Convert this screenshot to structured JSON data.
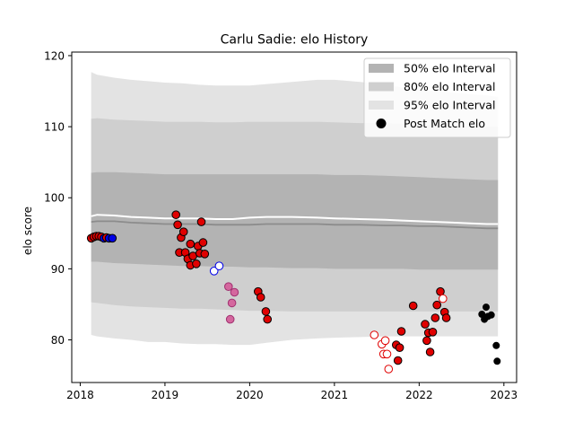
{
  "chart_data": {
    "type": "scatter",
    "title": "Carlu Sadie: elo History",
    "xlabel": "",
    "ylabel": "elo score",
    "xlim": [
      2017.9,
      2023.15
    ],
    "ylim": [
      74,
      120.5
    ],
    "x_ticks": [
      2018,
      2019,
      2020,
      2021,
      2022,
      2023
    ],
    "y_ticks": [
      80,
      90,
      100,
      110,
      120
    ],
    "grid": false,
    "legend_position": "top-right",
    "legend": [
      "50% elo Interval",
      "80% elo Interval",
      "95% elo Interval",
      "Post Match elo"
    ],
    "colors": {
      "band50": "#b3b3b3",
      "band80": "#cfcfcf",
      "band95": "#e3e3e3",
      "median_line": "#8c8c8c",
      "mean_line": "#ffffff",
      "red": "#e00000",
      "blue": "#0000e6",
      "pink": "#d4679e",
      "black": "#000000"
    },
    "interval_series": {
      "x": [
        2018.13,
        2018.2,
        2018.4,
        2018.6,
        2018.8,
        2019.0,
        2019.2,
        2019.4,
        2019.6,
        2019.8,
        2020.0,
        2020.2,
        2020.5,
        2020.8,
        2021.0,
        2021.3,
        2021.6,
        2021.8,
        2022.0,
        2022.2,
        2022.4,
        2022.6,
        2022.8,
        2022.93
      ],
      "median": [
        96.6,
        96.7,
        96.7,
        96.5,
        96.4,
        96.3,
        96.3,
        96.3,
        96.2,
        96.2,
        96.2,
        96.3,
        96.3,
        96.3,
        96.2,
        96.2,
        96.1,
        96.1,
        96.0,
        96.0,
        95.9,
        95.8,
        95.7,
        95.7
      ],
      "mean": [
        97.4,
        97.6,
        97.5,
        97.3,
        97.2,
        97.1,
        97.1,
        97.1,
        97.0,
        97.0,
        97.2,
        97.3,
        97.3,
        97.2,
        97.1,
        97.0,
        96.9,
        96.8,
        96.7,
        96.6,
        96.5,
        96.4,
        96.3,
        96.3
      ],
      "p50_low": [
        91.0,
        91.0,
        90.8,
        90.7,
        90.6,
        90.5,
        90.4,
        90.4,
        90.3,
        90.3,
        90.2,
        90.2,
        90.1,
        90.1,
        90.0,
        90.0,
        90.0,
        90.0,
        89.9,
        89.9,
        89.9,
        89.9,
        89.9,
        89.9
      ],
      "p50_high": [
        103.5,
        103.6,
        103.6,
        103.5,
        103.4,
        103.3,
        103.3,
        103.3,
        103.3,
        103.3,
        103.3,
        103.3,
        103.3,
        103.3,
        103.2,
        103.2,
        103.1,
        103.0,
        102.9,
        102.8,
        102.7,
        102.6,
        102.5,
        102.5
      ],
      "p80_low": [
        85.3,
        85.2,
        84.9,
        84.7,
        84.6,
        84.5,
        84.4,
        84.4,
        84.3,
        84.2,
        84.1,
        84.1,
        84.0,
        84.0,
        84.0,
        84.0,
        84.0,
        84.0,
        84.0,
        84.0,
        84.0,
        84.0,
        84.0,
        84.0
      ],
      "p80_high": [
        111.1,
        111.2,
        111.0,
        110.9,
        110.8,
        110.7,
        110.7,
        110.7,
        110.6,
        110.6,
        110.7,
        110.7,
        110.7,
        110.7,
        110.6,
        110.5,
        110.5,
        110.4,
        110.3,
        110.2,
        110.1,
        110.0,
        110.0,
        110.0
      ],
      "p95_low": [
        80.7,
        80.5,
        80.2,
        80.0,
        79.7,
        79.7,
        79.5,
        79.4,
        79.4,
        79.3,
        79.3,
        79.6,
        80.0,
        80.2,
        80.3,
        80.4,
        80.5,
        80.5,
        80.5,
        80.5,
        80.5,
        80.5,
        80.5,
        80.5
      ],
      "p95_high": [
        117.7,
        117.3,
        116.9,
        116.6,
        116.4,
        116.2,
        116.1,
        115.9,
        115.8,
        115.8,
        115.8,
        116.0,
        116.3,
        116.6,
        116.6,
        116.3,
        116.0,
        115.5,
        115.2,
        115.0,
        114.8,
        114.6,
        114.4,
        114.2
      ]
    },
    "points": [
      {
        "x": 2018.13,
        "y": 94.3,
        "color": "red",
        "filled": true
      },
      {
        "x": 2018.16,
        "y": 94.5,
        "color": "red",
        "filled": true
      },
      {
        "x": 2018.19,
        "y": 94.6,
        "color": "red",
        "filled": true
      },
      {
        "x": 2018.22,
        "y": 94.6,
        "color": "red",
        "filled": true
      },
      {
        "x": 2018.25,
        "y": 94.5,
        "color": "red",
        "filled": true
      },
      {
        "x": 2018.28,
        "y": 94.3,
        "color": "blue",
        "filled": true
      },
      {
        "x": 2018.31,
        "y": 94.4,
        "color": "red",
        "filled": true
      },
      {
        "x": 2018.34,
        "y": 94.3,
        "color": "blue",
        "filled": true
      },
      {
        "x": 2018.38,
        "y": 94.3,
        "color": "blue",
        "filled": true
      },
      {
        "x": 2019.13,
        "y": 97.6,
        "color": "red",
        "filled": true
      },
      {
        "x": 2019.15,
        "y": 96.2,
        "color": "red",
        "filled": true
      },
      {
        "x": 2019.17,
        "y": 92.3,
        "color": "red",
        "filled": true
      },
      {
        "x": 2019.19,
        "y": 94.4,
        "color": "red",
        "filled": true
      },
      {
        "x": 2019.22,
        "y": 95.2,
        "color": "red",
        "filled": true
      },
      {
        "x": 2019.24,
        "y": 92.3,
        "color": "red",
        "filled": true
      },
      {
        "x": 2019.27,
        "y": 91.4,
        "color": "red",
        "filled": true
      },
      {
        "x": 2019.3,
        "y": 90.5,
        "color": "red",
        "filled": true
      },
      {
        "x": 2019.3,
        "y": 93.5,
        "color": "red",
        "filled": true
      },
      {
        "x": 2019.33,
        "y": 91.8,
        "color": "red",
        "filled": true
      },
      {
        "x": 2019.37,
        "y": 90.7,
        "color": "red",
        "filled": true
      },
      {
        "x": 2019.39,
        "y": 93.2,
        "color": "red",
        "filled": true
      },
      {
        "x": 2019.41,
        "y": 92.2,
        "color": "red",
        "filled": true
      },
      {
        "x": 2019.43,
        "y": 96.6,
        "color": "red",
        "filled": true
      },
      {
        "x": 2019.45,
        "y": 93.7,
        "color": "red",
        "filled": true
      },
      {
        "x": 2019.47,
        "y": 92.1,
        "color": "red",
        "filled": true
      },
      {
        "x": 2019.58,
        "y": 89.7,
        "color": "blue",
        "filled": false
      },
      {
        "x": 2019.64,
        "y": 90.4,
        "color": "blue",
        "filled": false
      },
      {
        "x": 2019.75,
        "y": 87.5,
        "color": "pink",
        "filled": true
      },
      {
        "x": 2019.77,
        "y": 82.9,
        "color": "pink",
        "filled": true
      },
      {
        "x": 2019.79,
        "y": 85.2,
        "color": "pink",
        "filled": true
      },
      {
        "x": 2019.82,
        "y": 86.7,
        "color": "pink",
        "filled": true
      },
      {
        "x": 2020.1,
        "y": 86.8,
        "color": "red",
        "filled": true
      },
      {
        "x": 2020.13,
        "y": 86.0,
        "color": "red",
        "filled": true
      },
      {
        "x": 2020.19,
        "y": 84.0,
        "color": "red",
        "filled": true
      },
      {
        "x": 2020.21,
        "y": 82.9,
        "color": "red",
        "filled": true
      },
      {
        "x": 2021.47,
        "y": 80.7,
        "color": "red",
        "filled": false
      },
      {
        "x": 2021.56,
        "y": 79.4,
        "color": "red",
        "filled": false
      },
      {
        "x": 2021.58,
        "y": 78.0,
        "color": "red",
        "filled": false
      },
      {
        "x": 2021.6,
        "y": 79.9,
        "color": "red",
        "filled": false
      },
      {
        "x": 2021.62,
        "y": 78.0,
        "color": "red",
        "filled": false
      },
      {
        "x": 2021.64,
        "y": 75.9,
        "color": "red",
        "filled": false
      },
      {
        "x": 2021.73,
        "y": 79.3,
        "color": "red",
        "filled": true
      },
      {
        "x": 2021.75,
        "y": 77.1,
        "color": "red",
        "filled": true
      },
      {
        "x": 2021.77,
        "y": 78.9,
        "color": "red",
        "filled": true
      },
      {
        "x": 2021.79,
        "y": 81.2,
        "color": "red",
        "filled": true
      },
      {
        "x": 2021.93,
        "y": 84.8,
        "color": "red",
        "filled": true
      },
      {
        "x": 2022.07,
        "y": 82.2,
        "color": "red",
        "filled": true
      },
      {
        "x": 2022.09,
        "y": 79.9,
        "color": "red",
        "filled": true
      },
      {
        "x": 2022.11,
        "y": 81.0,
        "color": "red",
        "filled": true
      },
      {
        "x": 2022.13,
        "y": 78.3,
        "color": "red",
        "filled": true
      },
      {
        "x": 2022.16,
        "y": 81.1,
        "color": "red",
        "filled": true
      },
      {
        "x": 2022.19,
        "y": 83.1,
        "color": "red",
        "filled": true
      },
      {
        "x": 2022.21,
        "y": 84.9,
        "color": "red",
        "filled": true
      },
      {
        "x": 2022.25,
        "y": 86.8,
        "color": "red",
        "filled": true
      },
      {
        "x": 2022.28,
        "y": 85.8,
        "color": "red",
        "filled": false
      },
      {
        "x": 2022.3,
        "y": 83.9,
        "color": "red",
        "filled": true
      },
      {
        "x": 2022.32,
        "y": 83.1,
        "color": "red",
        "filled": true
      },
      {
        "x": 2022.74,
        "y": 83.6,
        "color": "black",
        "filled": true
      },
      {
        "x": 2022.77,
        "y": 82.9,
        "color": "black",
        "filled": true
      },
      {
        "x": 2022.79,
        "y": 84.6,
        "color": "black",
        "filled": true
      },
      {
        "x": 2022.81,
        "y": 83.3,
        "color": "black",
        "filled": true
      },
      {
        "x": 2022.85,
        "y": 83.5,
        "color": "black",
        "filled": true
      },
      {
        "x": 2022.91,
        "y": 79.2,
        "color": "black",
        "filled": true
      },
      {
        "x": 2022.92,
        "y": 77.0,
        "color": "black",
        "filled": true
      }
    ]
  }
}
